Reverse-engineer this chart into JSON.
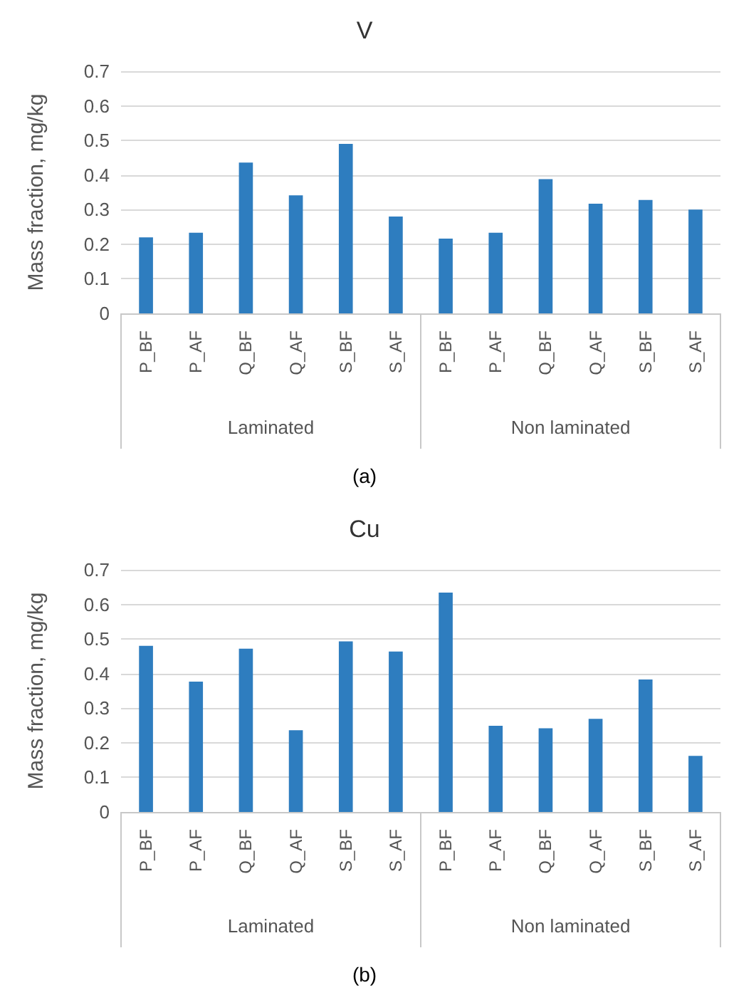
{
  "chart_data": [
    {
      "type": "bar",
      "title": "V",
      "subtitle": "(a)",
      "ylabel": "Mass fraction, mg/kg",
      "categories": [
        "P_BF",
        "P_AF",
        "Q_BF",
        "Q_AF",
        "S_BF",
        "S_AF",
        "P_BF",
        "P_AF",
        "Q_BF",
        "Q_AF",
        "S_BF",
        "S_AF"
      ],
      "series": [
        {
          "color": "#2e7dbf",
          "values": [
            0.22,
            0.233,
            0.436,
            0.341,
            0.49,
            0.28,
            0.216,
            0.233,
            0.388,
            0.317,
            0.328,
            0.3
          ]
        }
      ],
      "annotations": [
        "Laminated",
        "Non laminated"
      ],
      "ylim": [
        0,
        0.7
      ],
      "yticks": [
        0,
        0.1,
        0.2,
        0.3,
        0.4,
        0.5,
        0.6,
        0.7
      ],
      "grid": "y"
    },
    {
      "type": "bar",
      "title": "Cu",
      "subtitle": "(b)",
      "ylabel": "Mass fraction, mg/kg",
      "categories": [
        "P_BF",
        "P_AF",
        "Q_BF",
        "Q_AF",
        "S_BF",
        "S_AF",
        "P_BF",
        "P_AF",
        "Q_BF",
        "Q_AF",
        "S_BF",
        "S_AF"
      ],
      "series": [
        {
          "color": "#2e7dbf",
          "values": [
            0.48,
            0.377,
            0.472,
            0.236,
            0.493,
            0.464,
            0.634,
            0.249,
            0.242,
            0.269,
            0.383,
            0.162
          ]
        }
      ],
      "annotations": [
        "Laminated",
        "Non laminated"
      ],
      "ylim": [
        0,
        0.7
      ],
      "yticks": [
        0,
        0.1,
        0.2,
        0.3,
        0.4,
        0.5,
        0.6,
        0.7
      ],
      "grid": "y"
    }
  ]
}
